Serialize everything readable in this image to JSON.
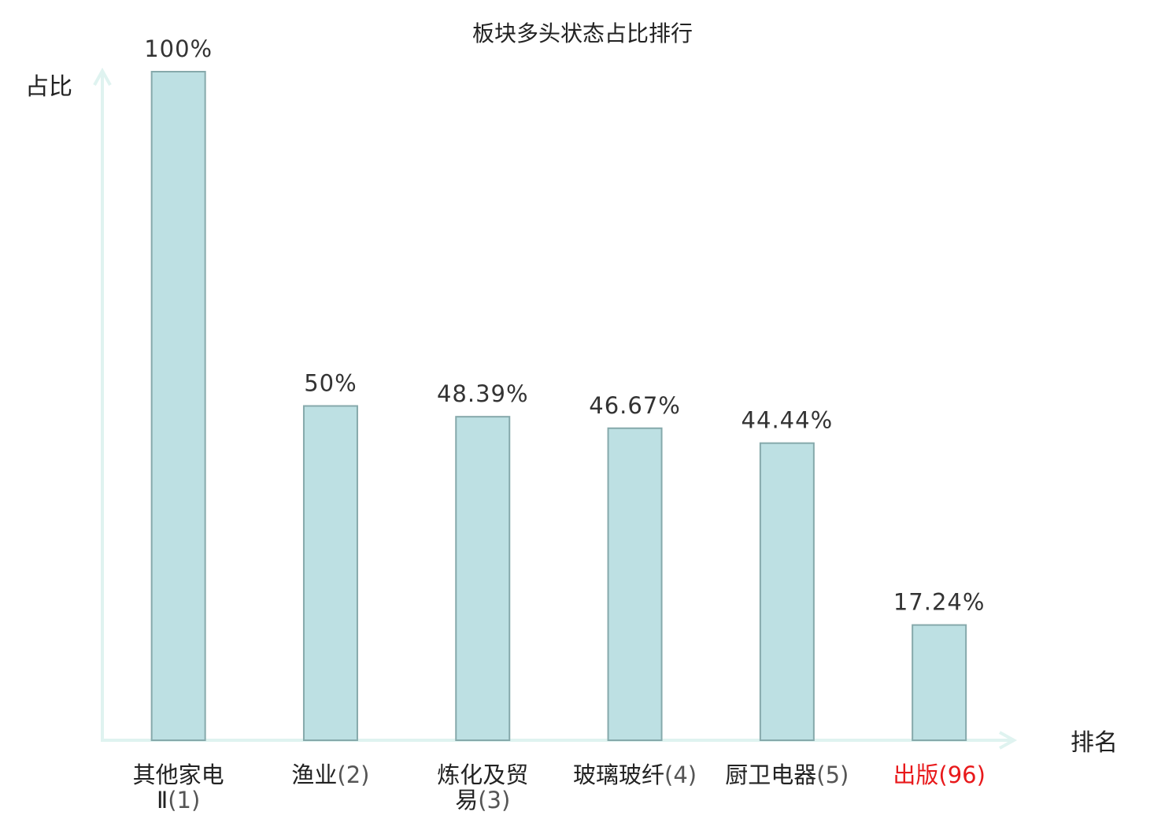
{
  "chart_data": {
    "type": "bar",
    "title": "板块多头状态占比排行",
    "ylabel": "占比",
    "xlabel": "排名",
    "ylim": [
      0,
      100
    ],
    "grid": false,
    "categories": [
      {
        "lines": [
          "其他家电",
          "Ⅱ"
        ],
        "rank": "(1)",
        "highlight": false
      },
      {
        "lines": [
          "渔业"
        ],
        "rank": "(2)",
        "highlight": false
      },
      {
        "lines": [
          "炼化及贸",
          "易"
        ],
        "rank": "(3)",
        "highlight": false
      },
      {
        "lines": [
          "玻璃玻纤"
        ],
        "rank": "(4)",
        "highlight": false
      },
      {
        "lines": [
          "厨卫电器"
        ],
        "rank": "(5)",
        "highlight": false
      },
      {
        "lines": [
          "出版"
        ],
        "rank": "(96)",
        "highlight": true
      }
    ],
    "values": [
      100,
      50,
      48.39,
      46.67,
      44.44,
      17.24
    ],
    "value_labels": [
      "100%",
      "50%",
      "48.39%",
      "46.67%",
      "44.44%",
      "17.24%"
    ],
    "colors": {
      "bar_fill": "#bde0e3",
      "bar_stroke": "#86a9ab",
      "axis": "#dff3f0",
      "highlight_text": "#e8191b"
    }
  }
}
